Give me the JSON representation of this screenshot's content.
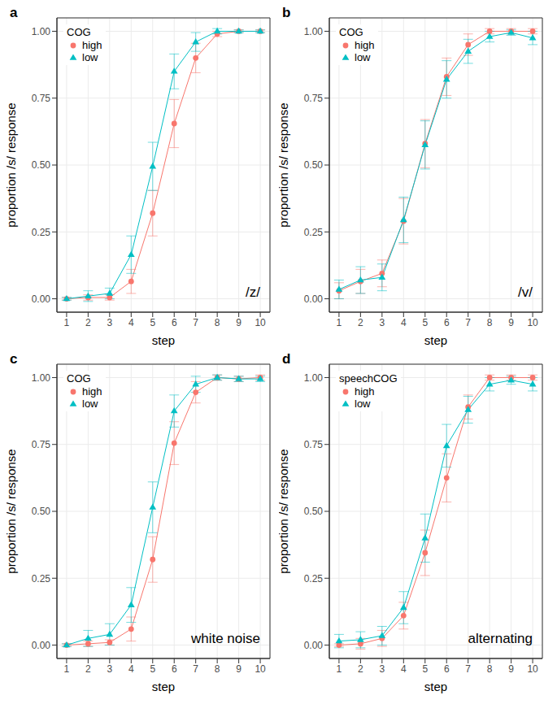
{
  "chart_data": [
    {
      "type": "line",
      "title": "a",
      "x_label": "step",
      "y_label": "proportion /s/ response",
      "legend_title": "COG",
      "legend": "top-left",
      "annotation": "/z/",
      "grid": true,
      "x": [
        1,
        2,
        3,
        4,
        5,
        6,
        7,
        8,
        9,
        10
      ],
      "xlim": [
        0.55,
        10.45
      ],
      "xticks": [
        1,
        2,
        3,
        4,
        5,
        6,
        7,
        8,
        9,
        10
      ],
      "ylim": [
        -0.05,
        1.05
      ],
      "yticks": [
        {
          "value": 0,
          "label": "0.00"
        },
        0.25,
        {
          "value": 0.5,
          "label": "0.50"
        },
        0.75,
        {
          "value": 1,
          "label": "1.00"
        }
      ],
      "series": [
        {
          "name": "high",
          "color": "#F8766D",
          "marker": "circle",
          "values": [
            0,
            0.005,
            0.005,
            0.065,
            0.32,
            0.655,
            0.9,
            0.99,
            1.0,
            1.0
          ],
          "errors": [
            0.005,
            0.01,
            0.01,
            0.045,
            0.085,
            0.09,
            0.055,
            0.01,
            0.005,
            0.005
          ]
        },
        {
          "name": "low",
          "color": "#00BFC4",
          "marker": "triangle",
          "values": [
            0,
            0.01,
            0.02,
            0.165,
            0.495,
            0.85,
            0.96,
            1.0,
            1.0,
            1.0
          ],
          "errors": [
            0.005,
            0.02,
            0.02,
            0.07,
            0.09,
            0.065,
            0.035,
            0.01,
            0.005,
            0.005
          ]
        }
      ]
    },
    {
      "type": "line",
      "title": "b",
      "x_label": "step",
      "y_label": "proportion /s/ response",
      "legend_title": "COG",
      "legend": "top-left",
      "annotation": "/v/",
      "grid": true,
      "x": [
        1,
        2,
        3,
        4,
        5,
        6,
        7,
        8,
        9,
        10
      ],
      "xlim": [
        0.55,
        10.45
      ],
      "xticks": [
        1,
        2,
        3,
        4,
        5,
        6,
        7,
        8,
        9,
        10
      ],
      "ylim": [
        -0.05,
        1.05
      ],
      "yticks": [
        {
          "value": 0,
          "label": "0.00"
        },
        0.25,
        {
          "value": 0.5,
          "label": "0.50"
        },
        0.75,
        {
          "value": 1,
          "label": "1.00"
        }
      ],
      "series": [
        {
          "name": "high",
          "color": "#F8766D",
          "marker": "circle",
          "values": [
            0.03,
            0.065,
            0.095,
            0.29,
            0.58,
            0.83,
            0.95,
            1.0,
            1.0,
            1.0
          ],
          "errors": [
            0.03,
            0.045,
            0.05,
            0.085,
            0.09,
            0.07,
            0.04,
            0.01,
            0.01,
            0.01
          ]
        },
        {
          "name": "low",
          "color": "#00BFC4",
          "marker": "triangle",
          "values": [
            0.035,
            0.07,
            0.08,
            0.295,
            0.575,
            0.82,
            0.925,
            0.98,
            0.995,
            0.975
          ],
          "errors": [
            0.035,
            0.05,
            0.05,
            0.085,
            0.09,
            0.07,
            0.045,
            0.02,
            0.01,
            0.025
          ]
        }
      ]
    },
    {
      "type": "line",
      "title": "c",
      "x_label": "step",
      "y_label": "proportion /s/ response",
      "legend_title": "COG",
      "legend": "top-left",
      "annotation": "white noise",
      "grid": true,
      "x": [
        1,
        2,
        3,
        4,
        5,
        6,
        7,
        8,
        9,
        10
      ],
      "xlim": [
        0.55,
        10.45
      ],
      "xticks": [
        1,
        2,
        3,
        4,
        5,
        6,
        7,
        8,
        9,
        10
      ],
      "ylim": [
        -0.05,
        1.05
      ],
      "yticks": [
        {
          "value": 0,
          "label": "0.00"
        },
        0.25,
        {
          "value": 0.5,
          "label": "0.50"
        },
        0.75,
        {
          "value": 1,
          "label": "1.00"
        }
      ],
      "series": [
        {
          "name": "high",
          "color": "#F8766D",
          "marker": "circle",
          "values": [
            0,
            0.005,
            0.01,
            0.06,
            0.32,
            0.755,
            0.945,
            1.0,
            0.995,
            1.0
          ],
          "errors": [
            0.005,
            0.01,
            0.01,
            0.045,
            0.085,
            0.08,
            0.04,
            0.01,
            0.01,
            0.01
          ]
        },
        {
          "name": "low",
          "color": "#00BFC4",
          "marker": "triangle",
          "values": [
            0,
            0.025,
            0.04,
            0.15,
            0.515,
            0.875,
            0.975,
            1.0,
            0.995,
            0.995
          ],
          "errors": [
            0.005,
            0.03,
            0.04,
            0.065,
            0.095,
            0.06,
            0.03,
            0.01,
            0.01,
            0.01
          ]
        }
      ]
    },
    {
      "type": "line",
      "title": "d",
      "x_label": "step",
      "y_label": "proportion /s/ response",
      "legend_title": "speechCOG",
      "legend": "top-left",
      "annotation": "alternating",
      "grid": true,
      "x": [
        1,
        2,
        3,
        4,
        5,
        6,
        7,
        8,
        9,
        10
      ],
      "xlim": [
        0.55,
        10.45
      ],
      "xticks": [
        1,
        2,
        3,
        4,
        5,
        6,
        7,
        8,
        9,
        10
      ],
      "ylim": [
        -0.05,
        1.05
      ],
      "yticks": [
        {
          "value": 0,
          "label": "0.00"
        },
        0.25,
        {
          "value": 0.5,
          "label": "0.50"
        },
        0.75,
        {
          "value": 1,
          "label": "1.00"
        }
      ],
      "series": [
        {
          "name": "high",
          "color": "#F8766D",
          "marker": "circle",
          "values": [
            0,
            0.005,
            0.025,
            0.11,
            0.345,
            0.625,
            0.89,
            1.0,
            1.0,
            1.0
          ],
          "errors": [
            0.005,
            0.02,
            0.03,
            0.05,
            0.085,
            0.09,
            0.045,
            0.01,
            0.01,
            0.01
          ]
        },
        {
          "name": "low",
          "color": "#00BFC4",
          "marker": "triangle",
          "values": [
            0.015,
            0.02,
            0.035,
            0.14,
            0.4,
            0.745,
            0.88,
            0.975,
            0.99,
            0.975
          ],
          "errors": [
            0.025,
            0.03,
            0.035,
            0.06,
            0.09,
            0.08,
            0.05,
            0.025,
            0.015,
            0.025
          ]
        }
      ]
    }
  ]
}
